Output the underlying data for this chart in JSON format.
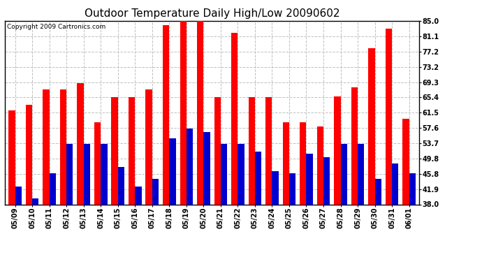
{
  "title": "Outdoor Temperature Daily High/Low 20090602",
  "copyright": "Copyright 2009 Cartronics.com",
  "dates": [
    "05/09",
    "05/10",
    "05/11",
    "05/12",
    "05/13",
    "05/14",
    "05/15",
    "05/16",
    "05/17",
    "05/18",
    "05/19",
    "05/20",
    "05/21",
    "05/22",
    "05/23",
    "05/24",
    "05/25",
    "05/26",
    "05/27",
    "05/28",
    "05/29",
    "05/30",
    "05/31",
    "06/01"
  ],
  "highs": [
    62.0,
    63.5,
    67.5,
    67.5,
    69.0,
    59.0,
    65.4,
    65.4,
    67.5,
    84.0,
    85.0,
    85.0,
    65.4,
    82.0,
    65.4,
    65.4,
    59.0,
    59.0,
    58.0,
    65.6,
    68.0,
    78.0,
    83.0,
    60.0
  ],
  "lows": [
    42.5,
    39.5,
    46.0,
    53.5,
    53.5,
    53.5,
    47.5,
    42.5,
    44.5,
    55.0,
    57.5,
    56.5,
    53.5,
    53.5,
    51.5,
    46.5,
    46.0,
    51.0,
    50.0,
    53.5,
    53.5,
    44.5,
    48.5,
    46.0
  ],
  "high_color": "#ff0000",
  "low_color": "#0000cc",
  "background_color": "#ffffff",
  "plot_bg_color": "#ffffff",
  "grid_color": "#c0c0c0",
  "yticks": [
    38.0,
    41.9,
    45.8,
    49.8,
    53.7,
    57.6,
    61.5,
    65.4,
    69.3,
    73.2,
    77.2,
    81.1,
    85.0
  ],
  "ylim": [
    38.0,
    85.0
  ],
  "bar_width": 0.38,
  "title_fontsize": 11,
  "tick_fontsize": 7,
  "copyright_fontsize": 6.5
}
